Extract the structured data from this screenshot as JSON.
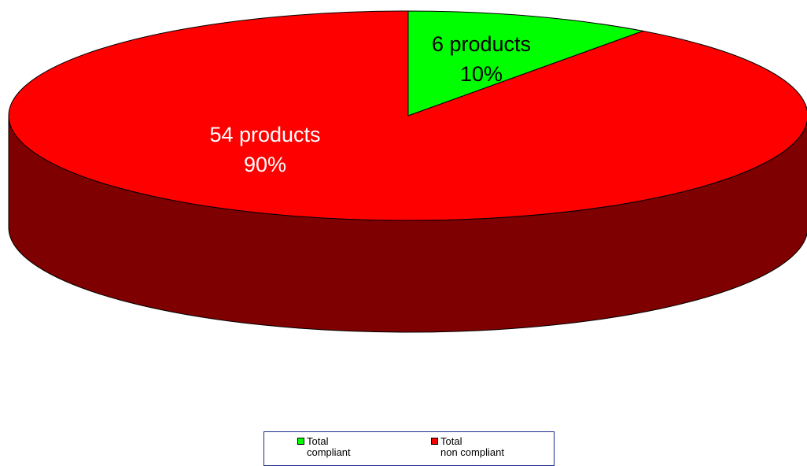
{
  "chart_data": {
    "type": "pie",
    "three_d": true,
    "categories": [
      "Total compliant",
      "Total non compliant"
    ],
    "values": [
      6,
      54
    ],
    "percentages": [
      10,
      90
    ],
    "colors": [
      "#00ff00",
      "#ff0000"
    ],
    "side_colors": [
      "#007f00",
      "#7f0000"
    ],
    "data_labels": [
      {
        "count": "6 products",
        "percent": "10%",
        "color": "#000000"
      },
      {
        "count": "54 products",
        "percent": "90%",
        "color": "#ffffff"
      }
    ],
    "legend": {
      "position": "bottom",
      "items": [
        {
          "line1": "Total",
          "line2": "compliant",
          "color": "#00ff00"
        },
        {
          "line1": "Total",
          "line2": "non compliant",
          "color": "#ff0000"
        }
      ]
    }
  }
}
